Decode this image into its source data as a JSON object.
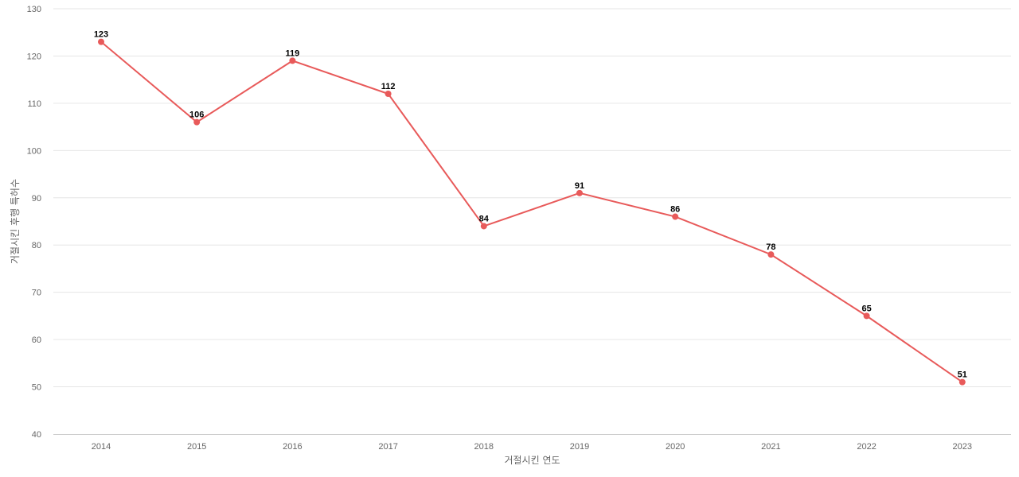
{
  "chart_data": {
    "type": "line",
    "title": "",
    "xlabel": "거절시킨 연도",
    "ylabel": "거절시킨 후행 특허수",
    "x": [
      "2014",
      "2015",
      "2016",
      "2017",
      "2018",
      "2019",
      "2020",
      "2021",
      "2022",
      "2023"
    ],
    "series": [
      {
        "values": [
          123,
          106,
          119,
          112,
          84,
          91,
          86,
          78,
          65,
          51
        ]
      }
    ],
    "ylim": [
      40,
      130
    ],
    "yticks": [
      40,
      50,
      60,
      70,
      80,
      90,
      100,
      110,
      120,
      130
    ],
    "grid": true,
    "legend": "none",
    "colors": {
      "line": "#e85a5a",
      "grid": "#e6e6e6",
      "text": "#666666",
      "label": "#000000"
    }
  }
}
